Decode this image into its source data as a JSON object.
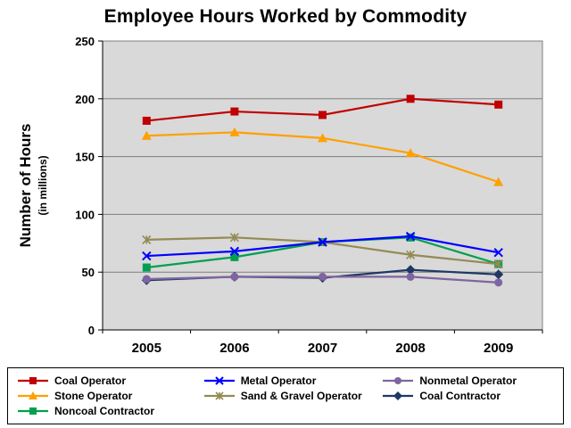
{
  "chart_data": {
    "type": "line",
    "title": "Employee Hours Worked by Commodity",
    "ylabel": "Number of Hours",
    "ylabel_sub": "(in millions)",
    "xlabel": "",
    "categories": [
      "2005",
      "2006",
      "2007",
      "2008",
      "2009"
    ],
    "ylim": [
      0,
      250
    ],
    "ytick_step": 50,
    "grid": true,
    "legend_position": "bottom",
    "plot_bg": "#D9D9D9",
    "grid_color": "#7F7F7F",
    "series": [
      {
        "name": "Coal Operator",
        "color": "#C00000",
        "marker": "square",
        "values": [
          181,
          189,
          186,
          200,
          195
        ]
      },
      {
        "name": "Metal Operator",
        "color": "#0000FF",
        "marker": "x",
        "values": [
          64,
          68,
          76,
          81,
          67
        ]
      },
      {
        "name": "Nonmetal Operator",
        "color": "#8064A2",
        "marker": "circle",
        "values": [
          44,
          46,
          46,
          46,
          41
        ]
      },
      {
        "name": "Stone Operator",
        "color": "#FFA000",
        "marker": "triangle",
        "values": [
          168,
          171,
          166,
          153,
          128
        ]
      },
      {
        "name": "Sand & Gravel Operator",
        "color": "#948A54",
        "marker": "asterisk",
        "values": [
          78,
          80,
          76,
          65,
          57
        ]
      },
      {
        "name": "Coal Contractor",
        "color": "#1F3864",
        "marker": "diamond",
        "values": [
          43,
          46,
          45,
          52,
          48
        ]
      },
      {
        "name": "Noncoal Contractor",
        "color": "#00A050",
        "marker": "square",
        "values": [
          54,
          63,
          76,
          80,
          57
        ]
      }
    ]
  }
}
